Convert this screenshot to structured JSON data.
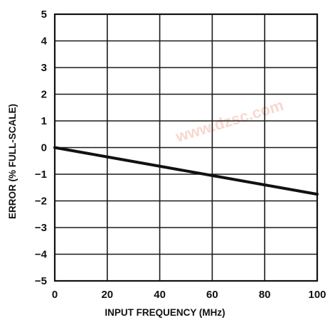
{
  "chart_data": {
    "type": "line",
    "xlabel": "INPUT FREQUENCY (MHz)",
    "ylabel": "ERROR (% FULL-SCALE)",
    "xlim": [
      0,
      100
    ],
    "ylim": [
      -5,
      5
    ],
    "x_ticks": [
      "0",
      "20",
      "40",
      "60",
      "80",
      "100"
    ],
    "y_ticks": [
      "5",
      "4",
      "3",
      "2",
      "1",
      "0",
      "−1",
      "−2",
      "−3",
      "−4",
      "−5"
    ],
    "grid": true,
    "series": [
      {
        "x": [
          0,
          20,
          40,
          60,
          80,
          100
        ],
        "y": [
          0,
          -0.35,
          -0.7,
          -1.05,
          -1.4,
          -1.75
        ]
      }
    ],
    "watermark": "www.dzsc.com",
    "colors": {
      "line": "#111111",
      "grid": "#1a1a1a",
      "watermark": "#f3b7a9"
    }
  }
}
